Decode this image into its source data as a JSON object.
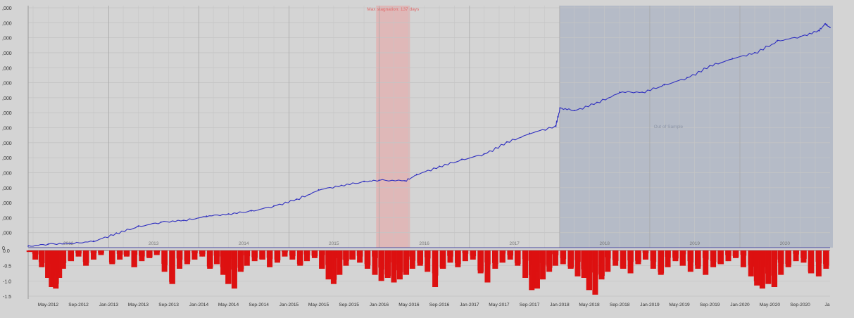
{
  "chart_data": [
    {
      "type": "line",
      "title": "",
      "xlabel": "",
      "ylabel": "",
      "x_range": [
        "2012-02-10",
        "2020-12-31"
      ],
      "grid": true,
      "annotations": {
        "stagnation_label": "Max stagnation: 137 days",
        "out_of_sample_label": "Out of Sample"
      },
      "yticks": [
        ",000",
        ",000",
        ",000",
        ",000",
        ",000",
        ",000",
        ",000",
        ",000",
        ",000",
        ",000",
        ",000",
        ",000",
        ",000",
        ",000",
        ",000",
        ",000",
        "0"
      ],
      "year_labels": [
        "2012",
        "2013",
        "2014",
        "2015",
        "2016",
        "2017",
        "2018",
        "2019",
        "2020"
      ],
      "regions": {
        "stagnation": {
          "start": "2015-12-20",
          "end": "2016-05-05"
        },
        "out_of_sample": {
          "start": "2018-01-01",
          "end": "2020-12-31"
        }
      },
      "colors": {
        "line": "#3030c0",
        "stagnation": "#e8a0a0",
        "out_of_sample": "#9aa6bb",
        "background": "#d4d4d4",
        "annotation_text": "#e06a6a"
      },
      "series": [
        {
          "x": [
            "2012-02-10",
            "2012-05-01",
            "2012-08-01",
            "2012-11-01",
            "2013-02-01",
            "2013-05-01",
            "2013-08-01",
            "2013-11-01",
            "2014-02-01",
            "2014-05-01",
            "2014-08-01",
            "2014-11-01",
            "2015-02-01",
            "2015-05-01",
            "2015-08-01",
            "2015-11-01",
            "2016-01-01",
            "2016-04-15",
            "2016-06-01",
            "2016-09-01",
            "2016-12-01",
            "2017-03-01",
            "2017-06-01",
            "2017-09-01",
            "2017-12-15",
            "2018-01-02",
            "2018-03-01",
            "2018-06-01",
            "2018-09-01",
            "2018-12-01",
            "2019-03-01",
            "2019-06-01",
            "2019-09-01",
            "2019-12-01",
            "2020-03-01",
            "2020-06-01",
            "2020-09-01",
            "2020-11-15",
            "2020-12-10",
            "2020-12-31"
          ],
          "y": [
            0.1,
            0.25,
            0.28,
            0.45,
            1.0,
            1.45,
            1.75,
            1.85,
            2.15,
            2.3,
            2.5,
            2.85,
            3.3,
            3.95,
            4.25,
            4.5,
            4.6,
            4.55,
            5.0,
            5.55,
            6.0,
            6.4,
            7.2,
            7.8,
            8.3,
            9.5,
            9.35,
            9.9,
            10.6,
            10.6,
            11.1,
            11.6,
            12.4,
            12.9,
            13.3,
            14.1,
            14.4,
            14.8,
            15.25,
            15.0
          ]
        }
      ]
    },
    {
      "type": "bar",
      "title": "",
      "xlabel": "",
      "ylabel": "",
      "ylim": [
        -1.5,
        0
      ],
      "yticks": [
        "0.0",
        "-0.5",
        "-1.0",
        "-1.5"
      ],
      "xticks": [
        "May-2012",
        "Sep-2012",
        "Jan-2013",
        "May-2013",
        "Sep-2013",
        "Jan-2014",
        "May-2014",
        "Sep-2014",
        "Jan-2015",
        "May-2015",
        "Sep-2015",
        "Jan-2016",
        "May-2016",
        "Sep-2016",
        "Jan-2017",
        "May-2017",
        "Sep-2017",
        "Jan-2018",
        "May-2018",
        "Sep-2018",
        "Jan-2019",
        "May-2019",
        "Sep-2019",
        "Jan-2020",
        "May-2020",
        "Sep-2020",
        "Ja"
      ],
      "colors": {
        "bar": "#dd1111"
      },
      "series": [
        {
          "x": [
            "2012-02-15",
            "2012-03-10",
            "2012-04-05",
            "2012-05-01",
            "2012-05-15",
            "2012-06-01",
            "2012-06-15",
            "2012-07-01",
            "2012-08-01",
            "2012-09-01",
            "2012-10-01",
            "2012-11-01",
            "2012-12-01",
            "2013-01-15",
            "2013-02-15",
            "2013-03-15",
            "2013-04-15",
            "2013-05-15",
            "2013-06-15",
            "2013-07-15",
            "2013-08-15",
            "2013-09-15",
            "2013-10-15",
            "2013-11-15",
            "2013-12-15",
            "2014-01-15",
            "2014-02-15",
            "2014-03-15",
            "2014-04-10",
            "2014-05-01",
            "2014-05-25",
            "2014-06-20",
            "2014-07-15",
            "2014-08-15",
            "2014-09-15",
            "2014-10-15",
            "2014-11-15",
            "2014-12-15",
            "2015-01-15",
            "2015-02-15",
            "2015-03-15",
            "2015-04-15",
            "2015-05-15",
            "2015-06-10",
            "2015-07-01",
            "2015-07-25",
            "2015-08-20",
            "2015-09-15",
            "2015-10-15",
            "2015-11-15",
            "2015-12-15",
            "2016-01-10",
            "2016-02-05",
            "2016-03-01",
            "2016-03-25",
            "2016-04-20",
            "2016-05-15",
            "2016-06-15",
            "2016-07-15",
            "2016-08-15",
            "2016-09-15",
            "2016-10-15",
            "2016-11-15",
            "2016-12-15",
            "2017-01-15",
            "2017-02-15",
            "2017-03-15",
            "2017-04-15",
            "2017-05-15",
            "2017-06-15",
            "2017-07-15",
            "2017-08-15",
            "2017-09-10",
            "2017-10-01",
            "2017-10-25",
            "2017-11-20",
            "2017-12-15",
            "2018-01-15",
            "2018-02-15",
            "2018-03-15",
            "2018-04-10",
            "2018-05-01",
            "2018-05-25",
            "2018-06-20",
            "2018-07-15",
            "2018-08-15",
            "2018-09-15",
            "2018-10-15",
            "2018-11-15",
            "2018-12-15",
            "2019-01-15",
            "2019-02-15",
            "2019-03-15",
            "2019-04-15",
            "2019-05-15",
            "2019-06-15",
            "2019-07-15",
            "2019-08-15",
            "2019-09-15",
            "2019-10-15",
            "2019-11-15",
            "2019-12-15",
            "2020-01-15",
            "2020-02-15",
            "2020-03-10",
            "2020-04-01",
            "2020-04-25",
            "2020-05-20",
            "2020-06-15",
            "2020-07-15",
            "2020-08-15",
            "2020-09-15",
            "2020-10-15",
            "2020-11-15",
            "2020-12-15"
          ],
          "values": [
            -0.05,
            -0.3,
            -0.55,
            -0.9,
            -1.2,
            -1.25,
            -0.9,
            -0.6,
            -0.35,
            -0.2,
            -0.5,
            -0.3,
            -0.15,
            -0.45,
            -0.3,
            -0.2,
            -0.55,
            -0.35,
            -0.25,
            -0.15,
            -0.7,
            -1.1,
            -0.6,
            -0.45,
            -0.3,
            -0.2,
            -0.6,
            -0.45,
            -0.8,
            -1.1,
            -1.25,
            -0.7,
            -0.5,
            -0.35,
            -0.3,
            -0.55,
            -0.4,
            -0.2,
            -0.3,
            -0.5,
            -0.35,
            -0.25,
            -0.6,
            -0.95,
            -1.1,
            -0.8,
            -0.5,
            -0.3,
            -0.4,
            -0.6,
            -0.8,
            -1.0,
            -0.9,
            -1.05,
            -0.95,
            -0.8,
            -0.6,
            -0.5,
            -0.7,
            -1.2,
            -0.6,
            -0.4,
            -0.55,
            -0.35,
            -0.3,
            -0.75,
            -1.05,
            -0.6,
            -0.4,
            -0.3,
            -0.5,
            -0.9,
            -1.3,
            -1.25,
            -0.95,
            -0.7,
            -0.5,
            -0.45,
            -0.6,
            -0.85,
            -0.9,
            -1.3,
            -1.45,
            -0.95,
            -0.7,
            -0.5,
            -0.6,
            -0.75,
            -0.45,
            -0.3,
            -0.6,
            -0.8,
            -0.55,
            -0.35,
            -0.5,
            -0.7,
            -0.6,
            -0.8,
            -0.55,
            -0.45,
            -0.35,
            -0.25,
            -0.55,
            -0.85,
            -1.15,
            -1.25,
            -1.1,
            -1.2,
            -0.8,
            -0.55,
            -0.35,
            -0.4,
            -0.75,
            -0.85,
            -0.6
          ]
        }
      ]
    }
  ]
}
